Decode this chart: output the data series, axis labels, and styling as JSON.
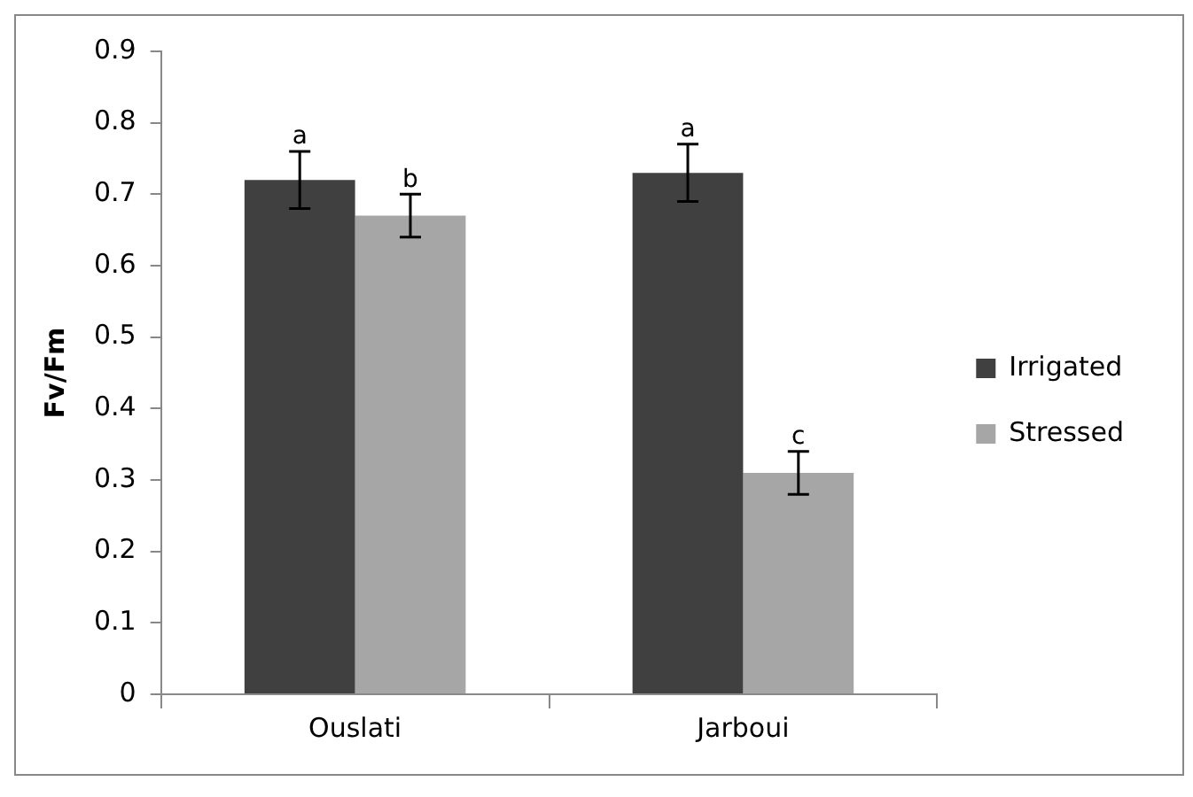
{
  "chart_data": {
    "type": "bar",
    "ylabel": "Fv/Fm",
    "categories": [
      "Ouslati",
      "Jarboui"
    ],
    "series": [
      {
        "name": "Irrigated",
        "color": "#404040",
        "values": [
          0.72,
          0.73
        ],
        "errors": [
          0.04,
          0.04
        ]
      },
      {
        "name": "Stressed",
        "color": "#a6a6a6",
        "values": [
          0.67,
          0.31
        ],
        "errors": [
          0.03,
          0.03
        ]
      }
    ],
    "ylim": [
      0,
      0.9
    ],
    "yticks": [
      0,
      0.1,
      0.2,
      0.3,
      0.4,
      0.5,
      0.6,
      0.7,
      0.8,
      0.9
    ],
    "grid": false,
    "legend": "right",
    "annotations": [
      {
        "text": "a",
        "x": "Ouslati",
        "y": 0.72
      },
      {
        "text": "b",
        "x": "Ouslati",
        "y": 0.67
      },
      {
        "text": "a",
        "x": "Jarboui",
        "y": 0.73
      },
      {
        "text": "c",
        "x": "Jarboui",
        "y": 0.31
      }
    ]
  }
}
